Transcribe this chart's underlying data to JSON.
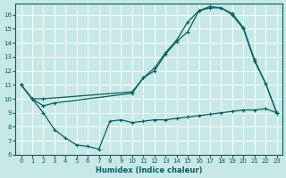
{
  "xlabel": "Humidex (Indice chaleur)",
  "bg_color": "#c8e8e8",
  "line_color": "#006060",
  "grid_color": "#ffffff",
  "xlim": [
    -0.5,
    23.5
  ],
  "ylim": [
    6,
    16.8
  ],
  "yticks": [
    6,
    7,
    8,
    9,
    10,
    11,
    12,
    13,
    14,
    15,
    16
  ],
  "xticks": [
    0,
    1,
    2,
    3,
    4,
    5,
    6,
    7,
    8,
    9,
    10,
    11,
    12,
    13,
    14,
    15,
    16,
    17,
    18,
    19,
    20,
    21,
    22,
    23
  ],
  "line1_x": [
    0,
    1,
    2,
    3,
    4,
    5,
    6,
    7,
    8,
    9,
    10,
    11,
    12,
    13,
    14,
    15,
    16,
    17,
    18,
    19,
    20,
    21,
    22,
    23
  ],
  "line1_y": [
    11,
    10,
    9,
    7.8,
    7.2,
    6.7,
    6.6,
    6.4,
    8.4,
    8.5,
    8.3,
    8.4,
    8.5,
    8.5,
    8.6,
    8.7,
    8.8,
    8.9,
    9.0,
    9.1,
    9.2,
    9.2,
    9.3,
    9.0
  ],
  "line2_x": [
    0,
    1,
    2,
    10,
    11,
    12,
    13,
    14,
    15,
    16,
    17,
    18,
    19,
    20,
    21,
    22,
    23
  ],
  "line2_y": [
    11,
    10,
    10,
    10.5,
    11.5,
    12.2,
    13.3,
    14.2,
    15.5,
    16.3,
    16.6,
    16.5,
    16.1,
    15.1,
    12.8,
    11.1,
    9.0
  ],
  "line3_x": [
    0,
    1,
    2,
    3,
    10,
    11,
    12,
    13,
    14,
    15,
    16,
    17,
    18,
    19,
    20,
    21,
    22,
    23
  ],
  "line3_y": [
    11,
    10,
    9.5,
    9.7,
    10.4,
    11.5,
    12.0,
    13.2,
    14.1,
    14.8,
    16.3,
    16.5,
    16.5,
    16.0,
    15.0,
    12.7,
    11.1,
    9.0
  ]
}
